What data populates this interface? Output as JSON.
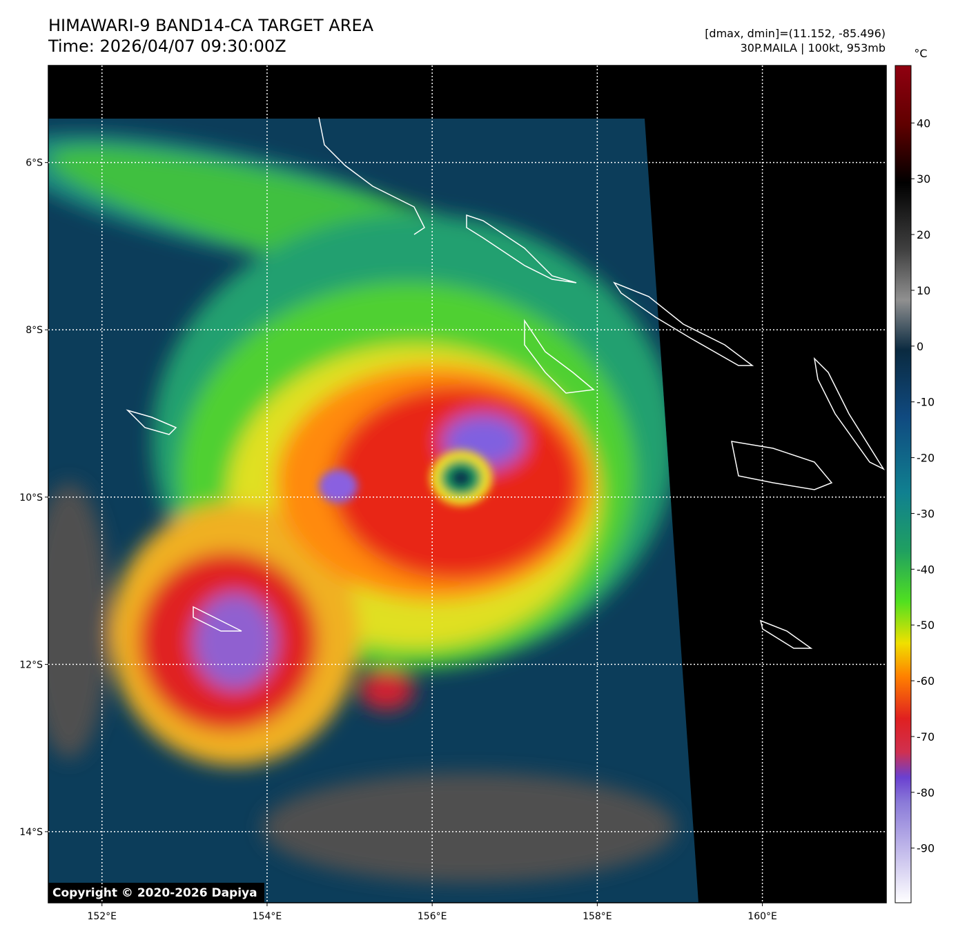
{
  "header": {
    "title": "HIMAWARI-9 BAND14-CA TARGET AREA",
    "time": "Time: 2026/04/07 09:30:00Z",
    "range": "[dmax, dmin]=(11.152, -85.496)",
    "storm": "30P.MAILA | 100kt, 953mb"
  },
  "map": {
    "xlim": [
      151.35,
      161.5
    ],
    "ylim": [
      -14.85,
      -4.84
    ],
    "xticks": [
      {
        "value": 152,
        "label": "152°E"
      },
      {
        "value": 154,
        "label": "154°E"
      },
      {
        "value": 156,
        "label": "156°E"
      },
      {
        "value": 158,
        "label": "158°E"
      },
      {
        "value": 160,
        "label": "160°E"
      }
    ],
    "yticks": [
      {
        "value": -6,
        "label": "6°S"
      },
      {
        "value": -8,
        "label": "8°S"
      },
      {
        "value": -10,
        "label": "10°S"
      },
      {
        "value": -12,
        "label": "12°S"
      },
      {
        "value": -14,
        "label": "14°S"
      }
    ],
    "grid": true
  },
  "colorbar": {
    "unit": "°C",
    "lim": [
      -99.8,
      50.3
    ],
    "ticks": [
      40,
      30,
      20,
      10,
      0,
      -10,
      -20,
      -30,
      -40,
      -50,
      -60,
      -70,
      -80,
      -90
    ]
  },
  "copyright": "Copyright © 2020-2026 Dapiya"
}
